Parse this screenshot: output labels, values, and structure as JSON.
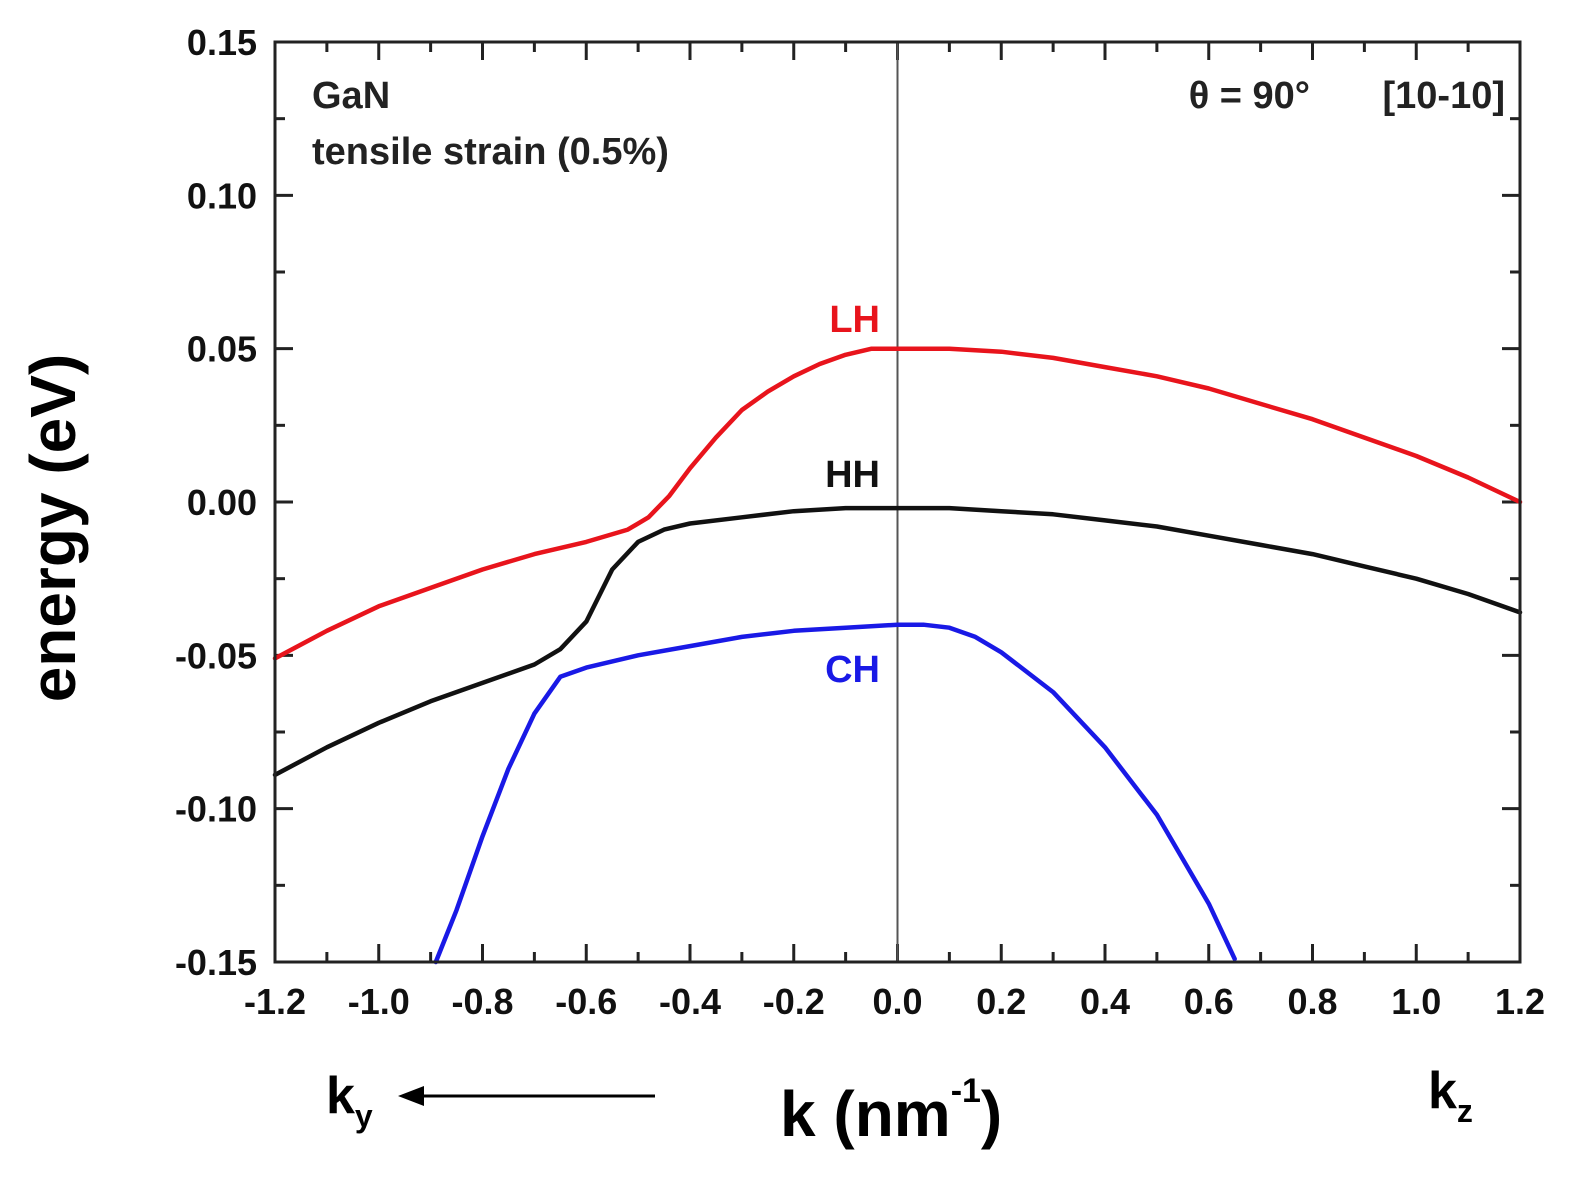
{
  "chart_data": {
    "type": "line",
    "xlabel": "k (nm",
    "xlabel_exp": "-1",
    "xlabel_close": ")",
    "ylabel": "energy (eV)",
    "xlim": [
      -1.2,
      1.2
    ],
    "ylim": [
      -0.15,
      0.15
    ],
    "xticks": [
      -1.2,
      -1.0,
      -0.8,
      -0.6,
      -0.4,
      -0.2,
      0.0,
      0.2,
      0.4,
      0.6,
      0.8,
      1.0,
      1.2
    ],
    "xtick_labels": [
      "-1.2",
      "-1.0",
      "-0.8",
      "-0.6",
      "-0.4",
      "-0.2",
      "0.0",
      "0.2",
      "0.4",
      "0.6",
      "0.8",
      "1.0",
      "1.2"
    ],
    "yticks": [
      -0.15,
      -0.1,
      -0.05,
      0.0,
      0.05,
      0.1,
      0.15
    ],
    "ytick_labels": [
      "-0.15",
      "-0.10",
      "-0.05",
      "0.00",
      "0.05",
      "0.10",
      "0.15"
    ],
    "grid": false,
    "vline_x": 0.0,
    "annotations": {
      "material": "GaN",
      "strain": "tensile strain (0.5%)",
      "angle": "θ = 90°",
      "direction": "[10-10]"
    },
    "direction_labels": {
      "left_base": "k",
      "left_sub": "y",
      "right_base": "k",
      "right_sub": "z"
    },
    "series": [
      {
        "name": "LH",
        "color": "#e8141c",
        "x": [
          -1.2,
          -1.1,
          -1.0,
          -0.9,
          -0.8,
          -0.7,
          -0.6,
          -0.52,
          -0.48,
          -0.44,
          -0.4,
          -0.35,
          -0.3,
          -0.25,
          -0.2,
          -0.15,
          -0.1,
          -0.05,
          0.0,
          0.1,
          0.2,
          0.3,
          0.4,
          0.5,
          0.6,
          0.7,
          0.8,
          0.9,
          1.0,
          1.1,
          1.2
        ],
        "y": [
          -0.051,
          -0.042,
          -0.034,
          -0.028,
          -0.022,
          -0.017,
          -0.013,
          -0.009,
          -0.005,
          0.002,
          0.011,
          0.021,
          0.03,
          0.036,
          0.041,
          0.045,
          0.048,
          0.05,
          0.05,
          0.05,
          0.049,
          0.047,
          0.044,
          0.041,
          0.037,
          0.032,
          0.027,
          0.021,
          0.015,
          0.008,
          0.0
        ]
      },
      {
        "name": "HH",
        "color": "#111111",
        "x": [
          -1.2,
          -1.1,
          -1.0,
          -0.9,
          -0.8,
          -0.7,
          -0.65,
          -0.6,
          -0.55,
          -0.5,
          -0.45,
          -0.4,
          -0.3,
          -0.2,
          -0.1,
          0.0,
          0.1,
          0.2,
          0.3,
          0.4,
          0.5,
          0.6,
          0.7,
          0.8,
          0.9,
          1.0,
          1.1,
          1.2
        ],
        "y": [
          -0.089,
          -0.08,
          -0.072,
          -0.065,
          -0.059,
          -0.053,
          -0.048,
          -0.039,
          -0.022,
          -0.013,
          -0.009,
          -0.007,
          -0.005,
          -0.003,
          -0.002,
          -0.002,
          -0.002,
          -0.003,
          -0.004,
          -0.006,
          -0.008,
          -0.011,
          -0.014,
          -0.017,
          -0.021,
          -0.025,
          -0.03,
          -0.036
        ]
      },
      {
        "name": "CH",
        "color": "#1919e6",
        "x": [
          -0.89,
          -0.85,
          -0.8,
          -0.75,
          -0.7,
          -0.65,
          -0.6,
          -0.5,
          -0.4,
          -0.3,
          -0.2,
          -0.1,
          0.0,
          0.05,
          0.1,
          0.15,
          0.2,
          0.3,
          0.4,
          0.5,
          0.6,
          0.65
        ],
        "y": [
          -0.15,
          -0.133,
          -0.109,
          -0.087,
          -0.069,
          -0.057,
          -0.054,
          -0.05,
          -0.047,
          -0.044,
          -0.042,
          -0.041,
          -0.04,
          -0.04,
          -0.041,
          -0.044,
          -0.049,
          -0.062,
          -0.08,
          -0.102,
          -0.131,
          -0.149
        ]
      }
    ]
  }
}
